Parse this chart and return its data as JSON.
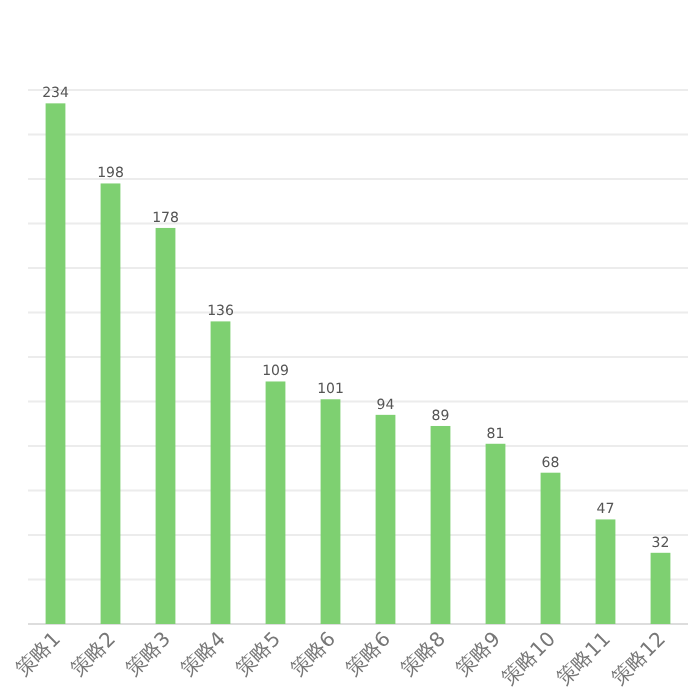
{
  "chart_data": {
    "type": "bar",
    "categories": [
      "策略1",
      "策略2",
      "策略3",
      "策略4",
      "策略5",
      "策略6",
      "策略6",
      "策略8",
      "策略9",
      "策略10",
      "策略11",
      "策略12"
    ],
    "values": [
      234,
      198,
      178,
      136,
      109,
      101,
      94,
      89,
      81,
      68,
      47,
      32
    ],
    "color": "#7ed071",
    "ylim": [
      0,
      240
    ],
    "yticks": [
      {
        "value": 0,
        "label": null
      },
      {
        "value": 20,
        "label": null
      },
      {
        "value": 40,
        "label": null
      },
      {
        "value": 60,
        "label": null
      },
      {
        "value": 80,
        "label": null
      },
      {
        "value": 100,
        "label": null
      },
      {
        "value": 120,
        "label": null
      },
      {
        "value": 140,
        "label": null
      },
      {
        "value": 160,
        "label": null
      },
      {
        "value": 180,
        "label": null
      },
      {
        "value": 200,
        "label": null
      },
      {
        "value": 220,
        "label": null
      },
      {
        "value": 240,
        "label": null
      }
    ],
    "tick_labels": "x",
    "grid": "y",
    "data_labels": true
  }
}
